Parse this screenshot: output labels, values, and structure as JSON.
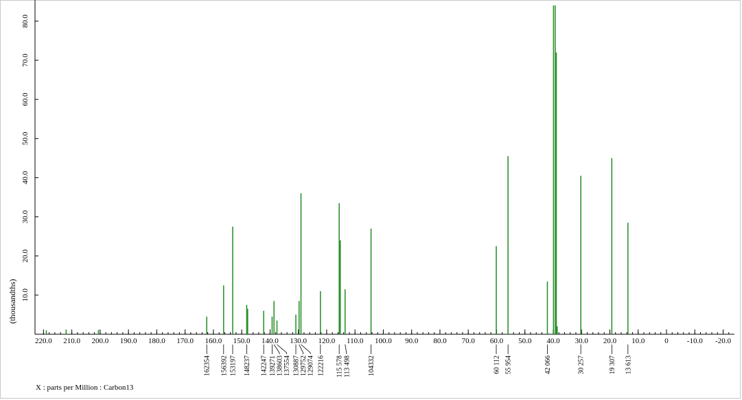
{
  "chart_data": {
    "type": "line",
    "ylabel": "(thousandths)",
    "xlabel": "X : parts per Million : Carbon13",
    "xlim": [
      223,
      -24
    ],
    "ylim": [
      0,
      84
    ],
    "grid": false,
    "color": "#228b22",
    "x_ticks": [
      220.0,
      210.0,
      200.0,
      190.0,
      180.0,
      170.0,
      160.0,
      150.0,
      140.0,
      130.0,
      120.0,
      110.0,
      100.0,
      90.0,
      80.0,
      70.0,
      60.0,
      50.0,
      40.0,
      30.0,
      20.0,
      10.0,
      0,
      -10.0,
      -20.0
    ],
    "x_tick_labels": [
      "220.0",
      "210.0",
      "200.0",
      "190.0",
      "180.0",
      "170.0",
      "160.0",
      "150.0",
      "140.0",
      "130.0",
      "120.0",
      "110.0",
      "100.0",
      "90.0",
      "80.0",
      "70.0",
      "60.0",
      "50.0",
      "40.0",
      "30.0",
      "20.0",
      "10.0",
      "0",
      "-10.0",
      "-20.0"
    ],
    "y_ticks": [
      10.0,
      20.0,
      30.0,
      40.0,
      50.0,
      60.0,
      70.0,
      80.0
    ],
    "y_tick_labels": [
      "10.0",
      "20.0",
      "30.0",
      "40.0",
      "50.0",
      "60.0",
      "70.0",
      "80.0"
    ],
    "peaks": [
      {
        "ppm": 219.0,
        "height": 1.0
      },
      {
        "ppm": 212.0,
        "height": 1.2
      },
      {
        "ppm": 200.6,
        "height": 1.1
      },
      {
        "ppm": 162.354,
        "height": 4.5
      },
      {
        "ppm": 156.392,
        "height": 12.5
      },
      {
        "ppm": 153.197,
        "height": 27.5
      },
      {
        "ppm": 148.237,
        "height": 7.5
      },
      {
        "ppm": 147.9,
        "height": 6.5
      },
      {
        "ppm": 142.247,
        "height": 6.0
      },
      {
        "ppm": 139.271,
        "height": 4.5
      },
      {
        "ppm": 138.603,
        "height": 8.5
      },
      {
        "ppm": 137.554,
        "height": 3.5
      },
      {
        "ppm": 130.887,
        "height": 5.0
      },
      {
        "ppm": 129.752,
        "height": 8.5
      },
      {
        "ppm": 129.074,
        "height": 36.0
      },
      {
        "ppm": 122.216,
        "height": 11.0
      },
      {
        "ppm": 115.578,
        "height": 33.5
      },
      {
        "ppm": 115.2,
        "height": 24.0
      },
      {
        "ppm": 113.498,
        "height": 11.5
      },
      {
        "ppm": 104.332,
        "height": 27.0
      },
      {
        "ppm": 60.112,
        "height": 22.5
      },
      {
        "ppm": 55.954,
        "height": 45.5
      },
      {
        "ppm": 42.066,
        "height": 13.5
      },
      {
        "ppm": 39.9,
        "height": 84.0
      },
      {
        "ppm": 39.3,
        "height": 84.0
      },
      {
        "ppm": 38.9,
        "height": 72.0
      },
      {
        "ppm": 38.6,
        "height": 2.0
      },
      {
        "ppm": 30.257,
        "height": 40.5
      },
      {
        "ppm": 19.307,
        "height": 45.0
      },
      {
        "ppm": 13.613,
        "height": 28.5
      }
    ],
    "peak_labels": [
      {
        "ppm": 162.354,
        "label": "162354"
      },
      {
        "ppm": 156.392,
        "label": "156392"
      },
      {
        "ppm": 153.197,
        "label": "153197"
      },
      {
        "ppm": 148.237,
        "label": "148237"
      },
      {
        "ppm": 142.247,
        "label": "142247"
      },
      {
        "ppm": 139.271,
        "label": "139271"
      },
      {
        "ppm": 138.603,
        "label": "138603"
      },
      {
        "ppm": 137.554,
        "label": "137554"
      },
      {
        "ppm": 130.887,
        "label": "130887"
      },
      {
        "ppm": 129.752,
        "label": "129752"
      },
      {
        "ppm": 129.074,
        "label": "129074"
      },
      {
        "ppm": 122.216,
        "label": "122216"
      },
      {
        "ppm": 115.578,
        "label": "115 578"
      },
      {
        "ppm": 113.498,
        "label": "113 498"
      },
      {
        "ppm": 104.332,
        "label": "104332"
      },
      {
        "ppm": 60.112,
        "label": "60 112"
      },
      {
        "ppm": 55.954,
        "label": "55 954"
      },
      {
        "ppm": 42.066,
        "label": "42 066"
      },
      {
        "ppm": 30.257,
        "label": "30 257"
      },
      {
        "ppm": 19.307,
        "label": "19 307"
      },
      {
        "ppm": 13.613,
        "label": "13 613"
      }
    ]
  }
}
